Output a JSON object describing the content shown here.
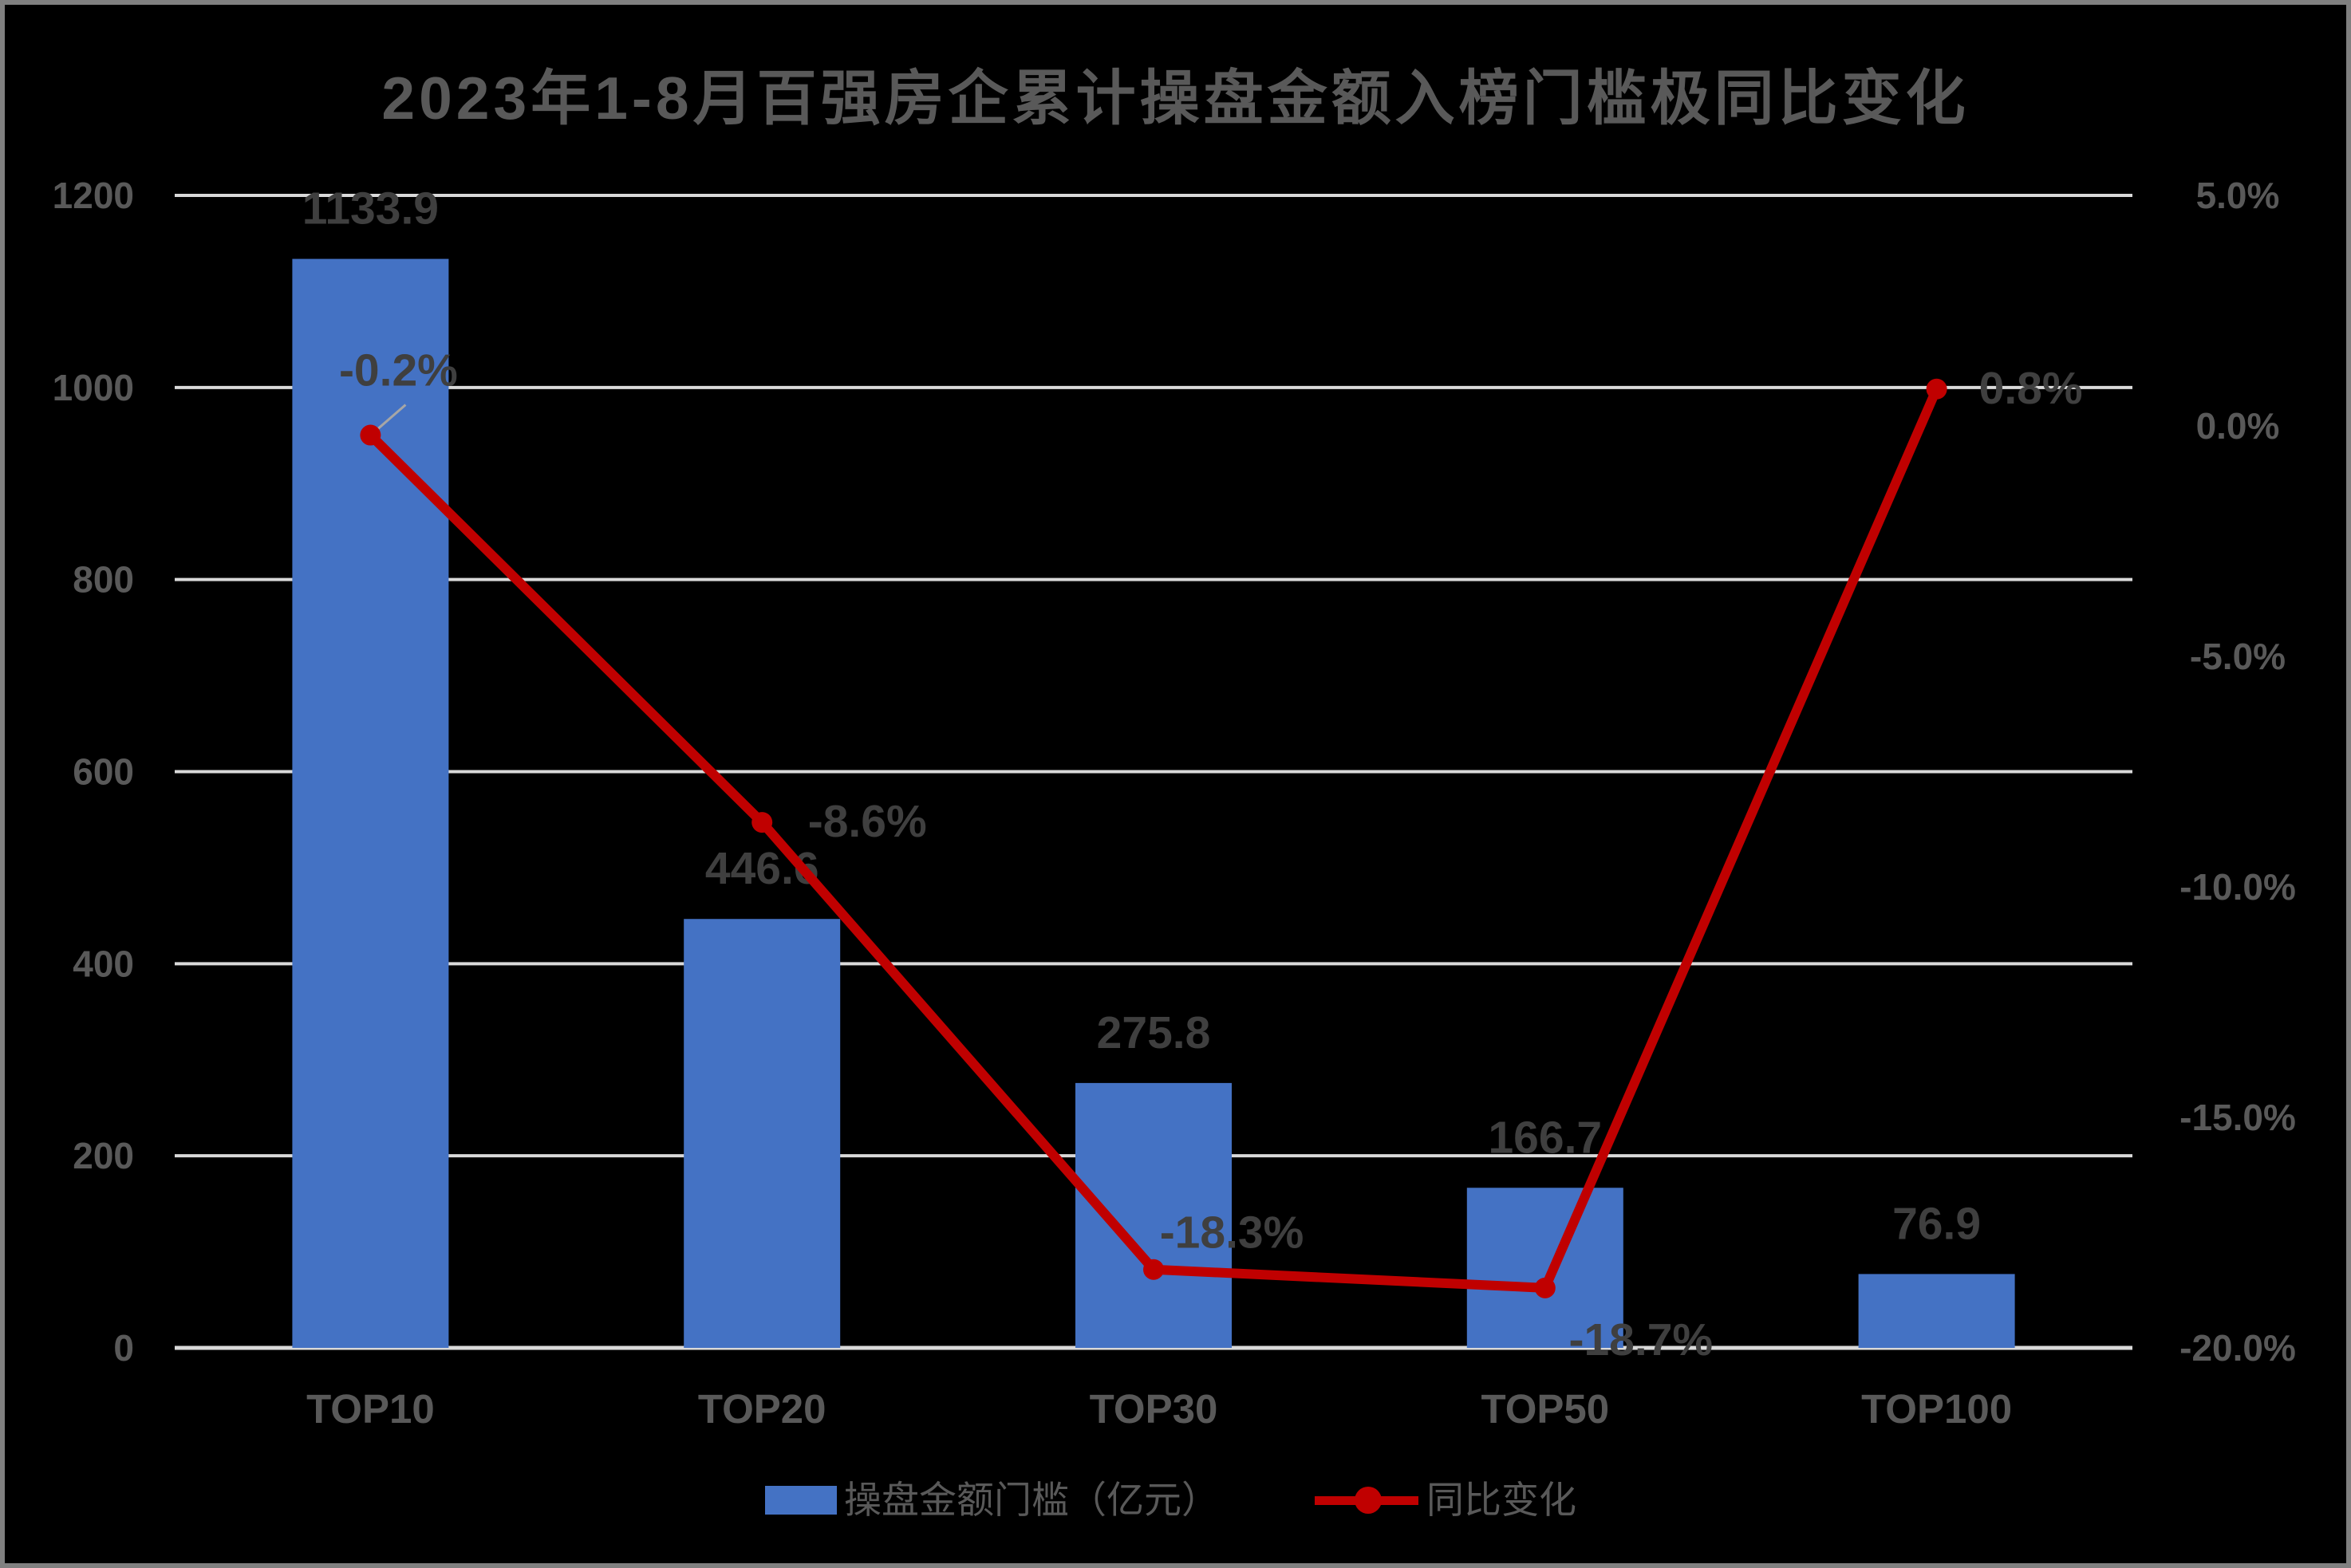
{
  "title": "2023年1-8月百强房企累计操盘金额入榜门槛极同比变化",
  "chart_data": {
    "type": "bar+line-combo",
    "categories": [
      "TOP10",
      "TOP20",
      "TOP30",
      "TOP50",
      "TOP100"
    ],
    "series": [
      {
        "name": "操盘金额门槛（亿元）",
        "type": "bar",
        "axis": "left",
        "values": [
          1133.9,
          446.6,
          275.8,
          166.7,
          76.9
        ],
        "labels": [
          "1133.9",
          "446.6",
          "275.8",
          "166.7",
          "76.9"
        ],
        "color": "#4472C4"
      },
      {
        "name": "同比变化",
        "type": "line",
        "axis": "right",
        "values": [
          -0.2,
          -8.6,
          -18.3,
          -18.7,
          0.8
        ],
        "labels": [
          "-0.2%",
          "-8.6%",
          "-18.3%",
          "-18.7%",
          "0.8%"
        ],
        "label_offsets": [
          [
            35,
            -80
          ],
          [
            132,
            0
          ],
          [
            98,
            -45
          ],
          [
            120,
            66
          ],
          [
            118,
            0
          ]
        ],
        "leader_line_point_index": 0,
        "color": "#C00000"
      }
    ],
    "left_axis": {
      "min": 0,
      "max": 1200,
      "step": 200,
      "ticks": [
        {
          "label": "0",
          "value": 0
        },
        {
          "label": "200",
          "value": 200
        },
        {
          "label": "400",
          "value": 400
        },
        {
          "label": "600",
          "value": 600
        },
        {
          "label": "800",
          "value": 800
        },
        {
          "label": "1000",
          "value": 1000
        },
        {
          "label": "1200",
          "value": 1200
        }
      ]
    },
    "right_axis": {
      "min": -20,
      "max": 5,
      "step": 5,
      "ticks": [
        {
          "label": "5.0%",
          "value": 5
        },
        {
          "label": "0.0%",
          "value": 0
        },
        {
          "label": "-5.0%",
          "value": -5
        },
        {
          "label": "-10.0%",
          "value": -10
        },
        {
          "label": "-15.0%",
          "value": -15
        },
        {
          "label": "-20.0%",
          "value": -20
        }
      ]
    },
    "grid": true,
    "legend_position": "bottom"
  },
  "colors": {
    "background": "#000000",
    "frame": "#808080",
    "bar": "#4472C4",
    "line": "#C00000",
    "gridline": "#D9D9D9",
    "axis_line": "#D9D9D9",
    "axis_text": "#595959",
    "category_text": "#595959",
    "data_label": "#3F3F3F",
    "title_text": "#595959",
    "leader_line": "#A6A6A6",
    "legend_text": "#595959"
  }
}
